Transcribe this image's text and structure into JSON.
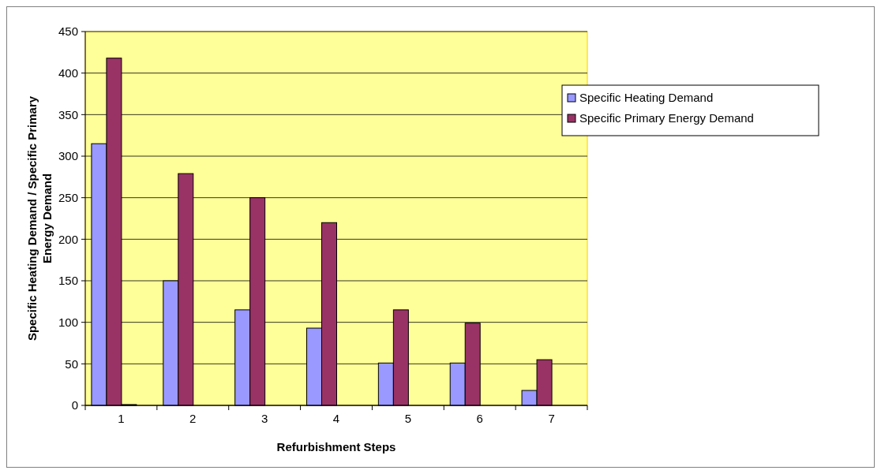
{
  "chart_data": {
    "type": "bar",
    "xlabel": "Refurbishment Steps",
    "ylabel": "Specific Heating Demand / Specific Primary Energy Demand",
    "categories": [
      "1",
      "2",
      "3",
      "4",
      "5",
      "6",
      "7"
    ],
    "series": [
      {
        "name": "Specific Heating Demand",
        "color": "#9999ff",
        "values": [
          315,
          150,
          115,
          93,
          51,
          51,
          18
        ]
      },
      {
        "name": "Specific Primary Energy Demand",
        "color": "#993366",
        "values": [
          418,
          279,
          250,
          220,
          115,
          99,
          55
        ]
      },
      {
        "color": "#333333",
        "values": [
          1,
          null,
          null,
          null,
          null,
          null,
          null
        ]
      }
    ],
    "ylim": [
      0,
      450
    ],
    "yticks": [
      0,
      50,
      100,
      150,
      200,
      250,
      300,
      350,
      400,
      450
    ],
    "grid": "y",
    "legend": "right"
  }
}
